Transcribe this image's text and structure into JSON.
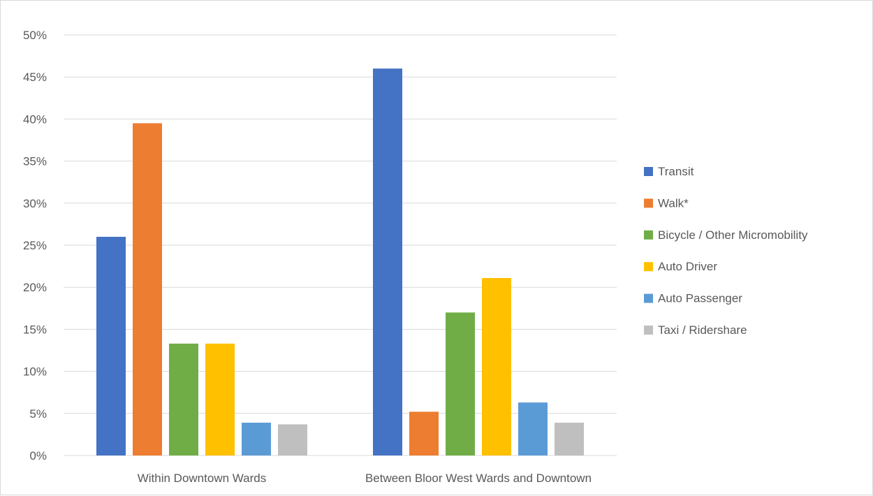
{
  "chart_data": {
    "type": "bar",
    "categories": [
      "Within Downtown Wards",
      "Between Bloor West Wards and Downtown"
    ],
    "series": [
      {
        "name": "Transit",
        "values": [
          26,
          46
        ],
        "color": "#4472c4"
      },
      {
        "name": "Walk*",
        "values": [
          39.5,
          5.2
        ],
        "color": "#ed7d31"
      },
      {
        "name": "Bicycle / Other Micromobility",
        "values": [
          13.3,
          17
        ],
        "color": "#70ad47"
      },
      {
        "name": "Auto Driver",
        "values": [
          13.3,
          21.1
        ],
        "color": "#ffc000"
      },
      {
        "name": "Auto Passenger",
        "values": [
          3.9,
          6.3
        ],
        "color": "#5b9bd5"
      },
      {
        "name": "Taxi / Ridershare",
        "values": [
          3.7,
          3.9
        ],
        "color": "#bfbfbf"
      }
    ],
    "ylim": [
      0,
      50
    ],
    "yticks": [
      0,
      5,
      10,
      15,
      20,
      25,
      30,
      35,
      40,
      45,
      50
    ],
    "ytick_labels": [
      "0%",
      "5%",
      "10%",
      "15%",
      "20%",
      "25%",
      "30%",
      "35%",
      "40%",
      "45%",
      "50%"
    ],
    "grid": true,
    "legend_position": "right",
    "title": "",
    "xlabel": "",
    "ylabel": ""
  }
}
